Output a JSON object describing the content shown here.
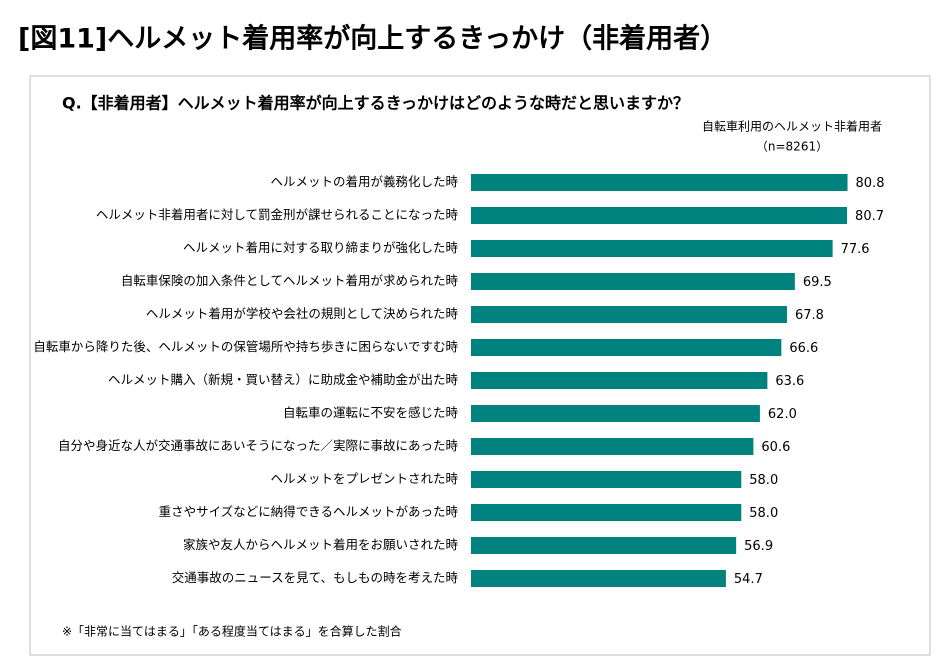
{
  "chart_data": {
    "type": "bar",
    "orientation": "horizontal",
    "title": "[図11]ヘルメット着用率が向上するきっかけ（非着用者）",
    "subtitle": "Q.【非着用者】ヘルメット着用率が向上するきっかけはどのような時だと思いますか？",
    "sample_size": "（n=8261）",
    "footnote": "※「非常に当てはまる」「ある程度当てはまる」を合算した割合",
    "categories": [
      "ヘルメットの着用が義務化した時",
      "ヘルメット非着用者に対して罰金刑が課せられることになった時",
      "ヘルメット着用に対する取り締まりが強化した時",
      "自転車保険の加入条件としてヘルメット着用が求められた時",
      "ヘルメット着用が学校や会社の規則として決められた時",
      "自転車から降りた後、ヘルメットの保管場所や持ち歩きに困らないですむ時",
      "ヘルメット購入（新規・買い替え）に助成金や補助金が出た時",
      "自転車の運転に不安を感じた時",
      "自分や身近な人が交通事故にあいそうになった／実際に事故にあった時",
      "ヘルメットをプレゼントされた時",
      "重さやサイズなどに納得できるヘルメットがあった時",
      "家族や友人からヘルメット着用をお願いされた時",
      "交通事故のニュースを見て、もしもの時を考えた時"
    ],
    "series": [
      {
        "name": "自転車利用のヘルメット非着用者",
        "color": "#00827f",
        "values": [
          80.8,
          80.7,
          77.6,
          69.5,
          67.8,
          66.6,
          63.6,
          62.0,
          60.6,
          58.0,
          58.0,
          56.9,
          54.7
        ],
        "value_labels": [
          "80.8",
          "80.7",
          "77.6",
          "69.5",
          "67.8",
          "66.6",
          "63.6",
          "62.0",
          "60.6",
          "58.0",
          "58.0",
          "56.9",
          "54.7"
        ]
      }
    ],
    "xlim": [
      0,
      100
    ]
  }
}
